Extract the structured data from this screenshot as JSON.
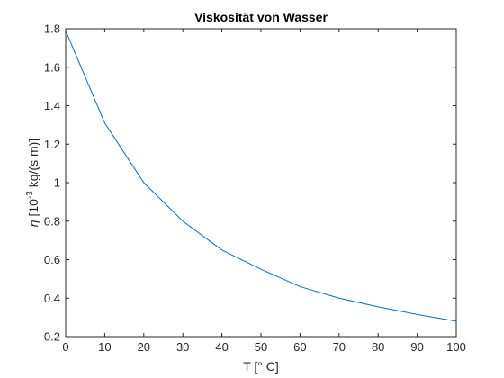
{
  "chart_data": {
    "type": "line",
    "title": "Viskosität von Wasser",
    "xlabel": "T [° C]",
    "ylabel": {
      "symbol": "η",
      "prefix": " [10",
      "exponent": "-3",
      "suffix": " kg/(s m)]"
    },
    "xlim": [
      0,
      100
    ],
    "ylim": [
      0.2,
      1.8
    ],
    "xticks": [
      0,
      10,
      20,
      30,
      40,
      50,
      60,
      70,
      80,
      90,
      100
    ],
    "yticks": [
      0.2,
      0.4,
      0.6,
      0.8,
      1,
      1.2,
      1.4,
      1.6,
      1.8
    ],
    "grid": false,
    "series": [
      {
        "color": "#0072bd",
        "x": [
          0,
          10,
          20,
          30,
          40,
          50,
          60,
          70,
          80,
          90,
          100
        ],
        "y": [
          1.79,
          1.31,
          1.0,
          0.8,
          0.65,
          0.55,
          0.46,
          0.4,
          0.355,
          0.315,
          0.28
        ]
      }
    ]
  }
}
